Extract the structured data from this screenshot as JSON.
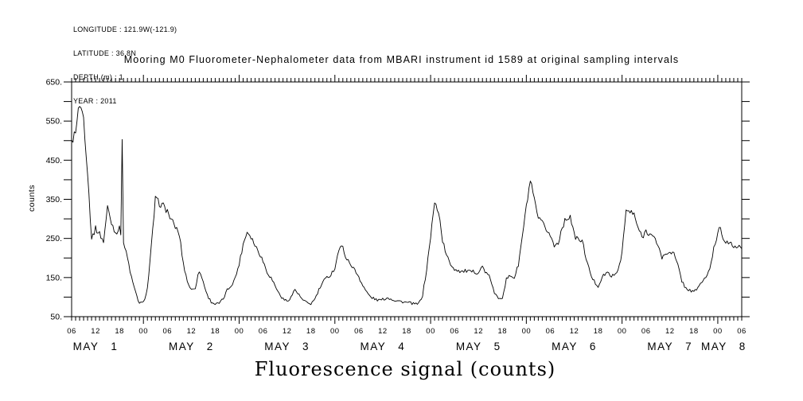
{
  "header": {
    "info_lines": [
      "LONGITUDE : 121.9W(-121.9)",
      "LATITUDE : 36.8N",
      "DEPTH (m) : 1",
      "YEAR : 2011"
    ],
    "title": "Mooring M0 Fluorometer-Nephalometer data from MBARI instrument id 1589 at original sampling intervals"
  },
  "colors": {
    "background": "#ffffff",
    "foreground": "#000000"
  },
  "chart_data": {
    "type": "line",
    "title": "Mooring M0 Fluorometer-Nephalometer data from MBARI instrument id 1589 at original sampling intervals",
    "xlabel": "Fluorescence signal (counts)",
    "ylabel": "counts",
    "ylim": [
      50,
      650
    ],
    "ytick_step": 50,
    "ytick_labeled": [
      {
        "value": 650,
        "text": "650."
      },
      {
        "value": 550,
        "text": "550."
      },
      {
        "value": 450,
        "text": "450."
      },
      {
        "value": 350,
        "text": "350."
      },
      {
        "value": 250,
        "text": "250."
      },
      {
        "value": 150,
        "text": "150."
      },
      {
        "value": 50,
        "text": "50."
      }
    ],
    "grid": false,
    "legend": null,
    "line_color": "#000000",
    "x_unit": "hours (May 2011, hour 0 = May 1 00:00)",
    "x_range_hours": [
      6,
      174
    ],
    "x_range_description": "May 1 06:00 to May 8 06:00, 2011",
    "xtick_minor_hours": 1,
    "xtick_label_every_hours": 6,
    "hour_labels_cycle": [
      "06",
      "12",
      "18",
      "00"
    ],
    "day_labels": [
      "MAY 1",
      "MAY 2",
      "MAY 3",
      "MAY 4",
      "MAY 5",
      "MAY 6",
      "MAY 7",
      "MAY 8"
    ],
    "day_label_hours": [
      12,
      36,
      60,
      84,
      108,
      132,
      156,
      169.5
    ],
    "noise_amplitude_counts": 8,
    "series": [
      {
        "name": "fluorescence_counts",
        "start_hour": 6,
        "interval_hours": 1,
        "values": [
          490,
          530,
          595,
          560,
          420,
          250,
          275,
          262,
          242,
          330,
          290,
          265,
          275,
          240,
          200,
          150,
          112,
          84,
          86,
          122,
          230,
          350,
          340,
          333,
          320,
          296,
          280,
          260,
          186,
          141,
          118,
          125,
          168,
          139,
          105,
          88,
          82,
          84,
          95,
          118,
          130,
          148,
          185,
          235,
          268,
          255,
          232,
          215,
          192,
          165,
          149,
          130,
          109,
          95,
          90,
          100,
          120,
          105,
          92,
          85,
          83,
          95,
          118,
          138,
          150,
          158,
          175,
          222,
          228,
          195,
          185,
          168,
          152,
          130,
          112,
          100,
          95,
          92,
          94,
          98,
          96,
          92,
          90,
          88,
          86,
          85,
          82,
          83,
          105,
          170,
          255,
          340,
          320,
          245,
          205,
          185,
          172,
          168,
          165,
          167,
          163,
          165,
          163,
          178,
          160,
          148,
          108,
          98,
          100,
          145,
          155,
          150,
          182,
          255,
          330,
          398,
          345,
          300,
          288,
          274,
          258,
          230,
          240,
          280,
          300,
          308,
          258,
          247,
          243,
          200,
          160,
          140,
          128,
          150,
          162,
          158,
          152,
          170,
          215,
          320,
          318,
          310,
          278,
          252,
          270,
          262,
          250,
          235,
          200,
          210,
          218,
          210,
          180,
          142,
          122,
          118,
          112,
          125,
          138,
          152,
          168,
          225,
          262,
          260,
          242,
          235,
          232,
          226,
          228
        ],
        "spikes": [
          {
            "hour": 18.8,
            "value": 503
          },
          {
            "hour": 168.5,
            "value": 278
          }
        ]
      }
    ]
  }
}
